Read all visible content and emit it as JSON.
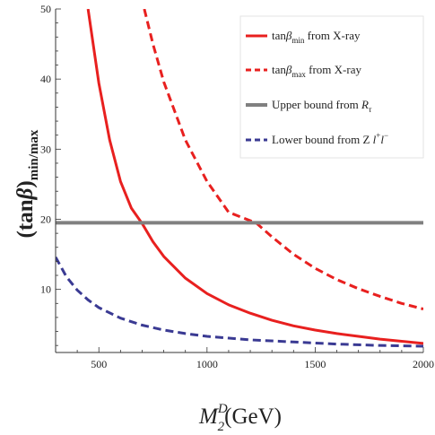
{
  "chart_data": {
    "type": "line",
    "title": "",
    "xlabel": {
      "main": "M",
      "sub": "2",
      "sup": "D",
      "unit": "(GeV)"
    },
    "ylabel": {
      "main": "(tan",
      "greek": "β",
      "close": ")",
      "sub": "min/max"
    },
    "xlim": [
      300,
      2000
    ],
    "ylim": [
      1,
      50
    ],
    "xticks": [
      500,
      1000,
      1500,
      2000
    ],
    "yticks": [
      10,
      20,
      30,
      40,
      50
    ],
    "grid": false,
    "legend_position": "top-right",
    "series": [
      {
        "name": {
          "pre": "tan",
          "greek": "β",
          "sub": "min",
          "post": " from X-ray"
        },
        "color": "#e8201f",
        "dash": "solid",
        "x": [
          450,
          500,
          550,
          600,
          650,
          700,
          750,
          800,
          900,
          1000,
          1100,
          1200,
          1300,
          1400,
          1500,
          1600,
          1700,
          1800,
          1900,
          2000
        ],
        "y": [
          50,
          39.4,
          31.3,
          25.4,
          21.6,
          19.4,
          16.8,
          14.7,
          11.6,
          9.4,
          7.8,
          6.6,
          5.6,
          4.8,
          4.2,
          3.7,
          3.3,
          2.9,
          2.6,
          2.3
        ]
      },
      {
        "name": {
          "pre": "tan",
          "greek": "β",
          "sub": "max",
          "post": " from X-ray"
        },
        "color": "#e8201f",
        "dash": "dashed",
        "x": [
          710,
          750,
          800,
          900,
          1000,
          1100,
          1200,
          1230,
          1300,
          1400,
          1500,
          1600,
          1700,
          1800,
          1900,
          2000
        ],
        "y": [
          50,
          45.0,
          39.6,
          31.3,
          25.4,
          21.0,
          19.8,
          19.4,
          17.5,
          15.0,
          13.0,
          11.4,
          10.1,
          9.0,
          8.0,
          7.2
        ]
      },
      {
        "name": {
          "pre": "Upper bound from ",
          "italic": "R",
          "sub": "τ",
          "post": ""
        },
        "color": "#808080",
        "dash": "solid",
        "x": [
          300,
          2000
        ],
        "y": [
          19.5,
          19.5
        ]
      },
      {
        "name": {
          "pre": "Lower bound from Z ",
          "italic": "l",
          "sup1": "+",
          "italic2": "l",
          "sup2": "−"
        },
        "color": "#3a3a93",
        "dash": "dashed",
        "x": [
          300,
          350,
          400,
          450,
          500,
          600,
          700,
          800,
          900,
          1000,
          1200,
          1400,
          1600,
          1800,
          2000
        ],
        "y": [
          14.6,
          11.8,
          9.9,
          8.5,
          7.4,
          5.9,
          4.9,
          4.2,
          3.7,
          3.3,
          2.8,
          2.5,
          2.2,
          2.0,
          1.9
        ]
      }
    ]
  }
}
